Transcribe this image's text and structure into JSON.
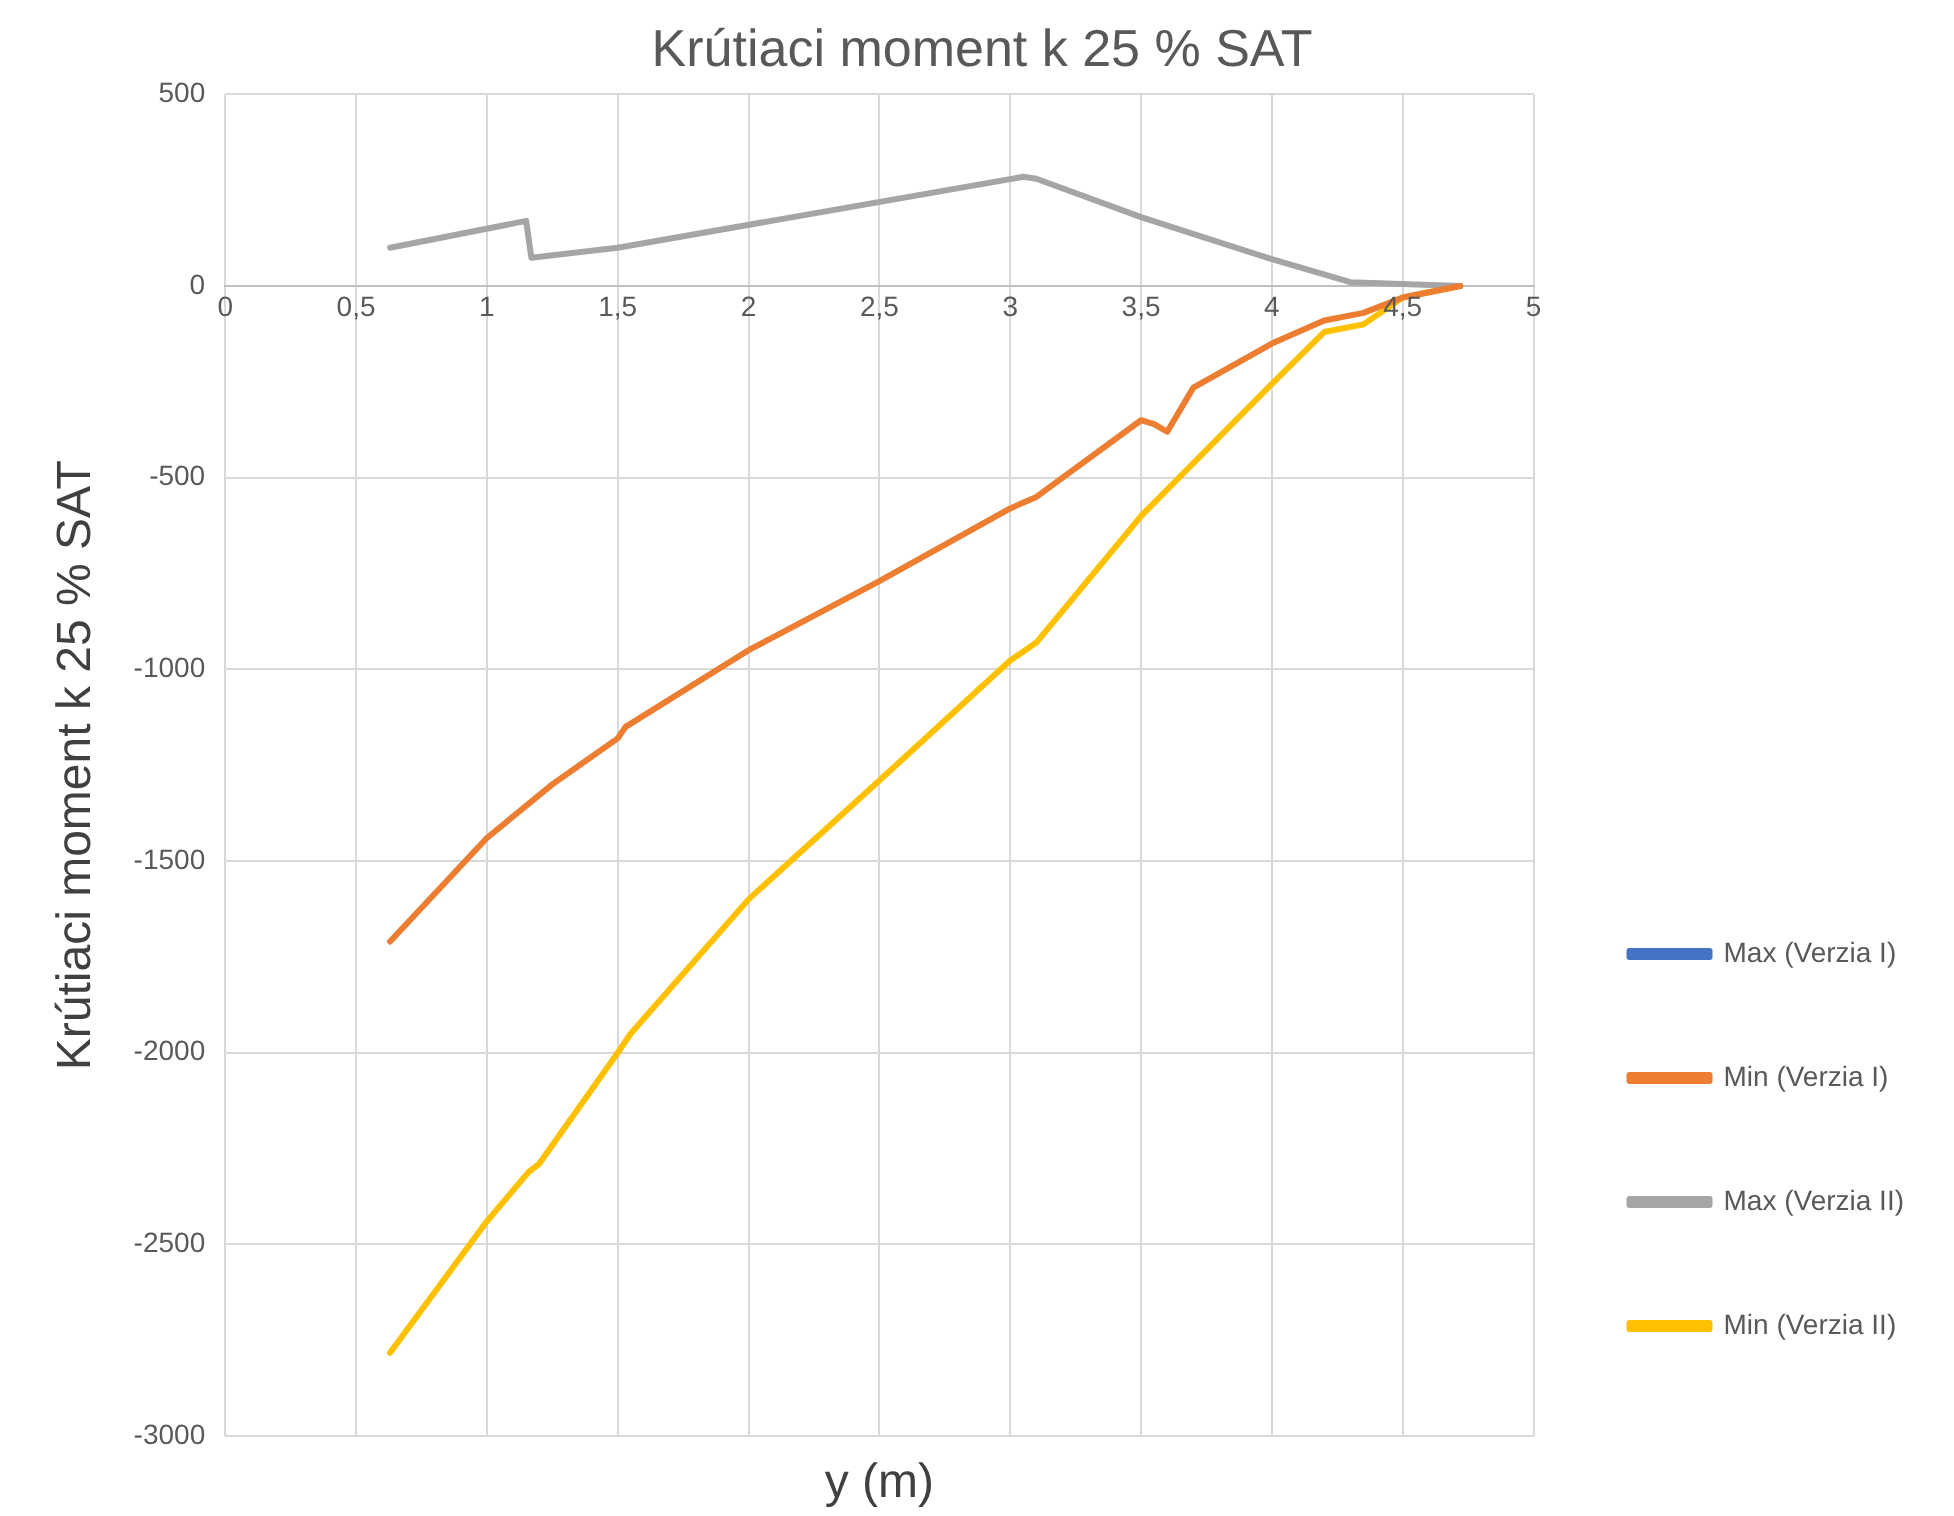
{
  "chart_data": {
    "type": "line",
    "title": "Krútiaci moment k 25 % SAT",
    "xlabel": "y (m)",
    "ylabel": "Krútiaci moment k 25 % SAT",
    "xlim": [
      0,
      5
    ],
    "xticks": [
      0,
      {
        "value": 0.5,
        "label": "0,5"
      },
      1,
      {
        "value": 1.5,
        "label": "1,5"
      },
      2,
      {
        "value": 2.5,
        "label": "2,5"
      },
      3,
      {
        "value": 3.5,
        "label": "3,5"
      },
      4,
      {
        "value": 4.5,
        "label": "4,5"
      },
      5
    ],
    "ylim": [
      -3000,
      500
    ],
    "yticks": [
      -3000,
      -2500,
      -2000,
      -1500,
      -1000,
      -500,
      0,
      500
    ],
    "grid": true,
    "legend": "right",
    "marker": "none",
    "line_style": "solid",
    "series": [
      {
        "name": "Max (Verzia I)",
        "color": "#4472c4"
      },
      {
        "name": "Min (Verzia I)",
        "color": "#ed7d31",
        "x": [
          0.63,
          1,
          1.25,
          1.5,
          1.53,
          2,
          2.5,
          3,
          3.1,
          3.5,
          3.55,
          3.6,
          3.7,
          4,
          4.2,
          4.35,
          4.5,
          4.72
        ],
        "values": [
          -1710,
          -1440,
          -1300,
          -1180,
          -1150,
          -950,
          -770,
          -580,
          -550,
          -350,
          -360,
          -380,
          -265,
          -150,
          -90,
          -70,
          -30,
          0
        ]
      },
      {
        "name": "Max (Verzia II)",
        "color": "#a5a5a5",
        "x": [
          0.63,
          1.15,
          1.17,
          1.5,
          3.05,
          3.1,
          3.5,
          4,
          4.3,
          4.72
        ],
        "values": [
          100,
          170,
          74,
          100,
          285,
          280,
          180,
          70,
          10,
          0
        ]
      },
      {
        "name": "Min (Verzia II)",
        "color": "#ffc000",
        "x": [
          0.63,
          1,
          1.16,
          1.2,
          1.5,
          1.55,
          2,
          2.5,
          3,
          3.1,
          3.5,
          4,
          4.2,
          4.35,
          4.5,
          4.72
        ],
        "values": [
          -2783,
          -2440,
          -2311,
          -2290,
          -2000,
          -1950,
          -1600,
          -1290,
          -977,
          -930,
          -600,
          -255,
          -120,
          -100,
          -30,
          0
        ]
      }
    ]
  }
}
